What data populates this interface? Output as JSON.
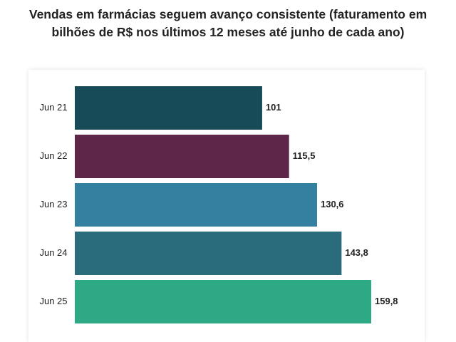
{
  "chart_data": {
    "type": "hbar",
    "title": "Vendas em farmácias seguem avanço consistente (faturamento em bilhões de R$ nos últimos 12 meses até junho de cada ano)",
    "categories": [
      "Jun 21",
      "Jun 22",
      "Jun 23",
      "Jun 24",
      "Jun 25"
    ],
    "values": [
      101,
      115.5,
      130.6,
      143.8,
      159.8
    ],
    "value_labels": [
      "101",
      "115,5",
      "130,6",
      "143,8",
      "159,8"
    ],
    "colors": [
      "#184b58",
      "#5e2749",
      "#3380a0",
      "#2a6b7c",
      "#2ea985"
    ]
  }
}
